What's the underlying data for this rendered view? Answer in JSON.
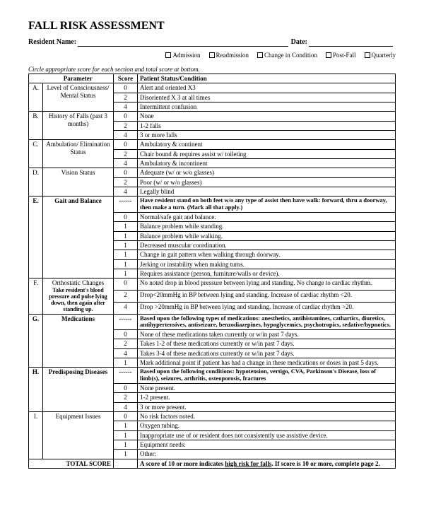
{
  "title": "FALL RISK ASSESSMENT",
  "header": {
    "resident_label": "Resident Name:",
    "date_label": "Date:"
  },
  "checkboxes": [
    "Admission",
    "Readmission",
    "Change in Condition",
    "Post-Fall",
    "Quarterly"
  ],
  "instruction": "Circle appropriate score for each section and total score at bottom.",
  "columns": [
    "Parameter",
    "Score",
    "Patient Status/Condition"
  ],
  "sections": [
    {
      "letter": "A.",
      "param": "Level of Consciousness/ Mental Status",
      "rows": [
        {
          "s": "0",
          "t": "Alert and oriented X3"
        },
        {
          "s": "2",
          "t": "Disoriented X 3 at all times"
        },
        {
          "s": "4",
          "t": "Intermittent confusion"
        }
      ]
    },
    {
      "letter": "B.",
      "param": "History of Falls (past 3 months)",
      "rows": [
        {
          "s": "0",
          "t": "None"
        },
        {
          "s": "2",
          "t": "1-2 falls"
        },
        {
          "s": "4",
          "t": "3 or more falls"
        }
      ]
    },
    {
      "letter": "C.",
      "param": "Ambulation/ Elimination Status",
      "rows": [
        {
          "s": "0",
          "t": "Ambulatory & continent"
        },
        {
          "s": "2",
          "t": "Chair bound & requires assist w/ toileting"
        },
        {
          "s": "4",
          "t": "Ambulatory & incontinent"
        }
      ]
    },
    {
      "letter": "D.",
      "param": "Vision Status",
      "rows": [
        {
          "s": "0",
          "t": "Adequate (w/ or w/o glasses)"
        },
        {
          "s": "2",
          "t": "Poor (w/ or w/o glasses)"
        },
        {
          "s": "4",
          "t": "Legally blind"
        }
      ]
    },
    {
      "letter": "E.",
      "param": "Gait and Balance",
      "note": "Have resident stand on both feet w/o any type of assist then have walk: forward, thru a doorway, then make a turn. (Mark all  that apply.)",
      "rows": [
        {
          "s": "0",
          "t": "Normal/safe gait and balance."
        },
        {
          "s": "1",
          "t": "Balance problem while standing."
        },
        {
          "s": "1",
          "t": "Balance problem while walking."
        },
        {
          "s": "1",
          "t": "Decreased muscular coordination."
        },
        {
          "s": "1",
          "t": "Change in gait pattern when walking through doorway."
        },
        {
          "s": "1",
          "t": "Jerking or instability when making turns."
        },
        {
          "s": "1",
          "t": "Requires assistance (person, furniture/walls or device)."
        }
      ]
    },
    {
      "letter": "F.",
      "param": "Orthostatic Changes",
      "sub": "Take resident's blood pressure and pulse lying down, then again after standing up.",
      "rows": [
        {
          "s": "0",
          "t": "No noted drop in blood pressure between lying and standing. No change to cardiac rhythm."
        },
        {
          "s": "2",
          "t": "Drop<20mmHg in BP between lying and standing. Increase of cardiac rhythm <20."
        },
        {
          "s": "4",
          "t": "Drop >20mmHg in BP between lying and standing. Increase of cardiac rhythm >20."
        }
      ]
    },
    {
      "letter": "G.",
      "param": "Medications",
      "note": "Based upon the following types of medications: anesthetics, antihistamines, cathartics, diuretics, antihypertensives, antiseizure, benzodiazepines, hypoglycemics, psychotropics, sedative/hypnotics.",
      "rows": [
        {
          "s": "0",
          "t": "None of these medications taken currently or w/in past 7 days."
        },
        {
          "s": "2",
          "t": "Takes 1-2 of these medications currently or w/in past 7 days."
        },
        {
          "s": "4",
          "t": "Takes 3-4 of these medications currently or w/in past 7 days."
        },
        {
          "s": "1",
          "t": "Mark additional point if patient has had a change in these medications or doses in past 5 days."
        }
      ]
    },
    {
      "letter": "H.",
      "param": "Predisposing Diseases",
      "note": "Based upon the following conditions: hypotension, vertigo, CVA, Parkinson's Disease, loss of limb(s), seizures, arthritis, osteoporosis, fractures",
      "rows": [
        {
          "s": "0",
          "t": "None present."
        },
        {
          "s": "2",
          "t": "1-2 present."
        },
        {
          "s": "4",
          "t": "3 or more present."
        }
      ]
    },
    {
      "letter": "I.",
      "param": "Equipment Issues",
      "rows": [
        {
          "s": "0",
          "t": "No risk factors noted."
        },
        {
          "s": "1",
          "t": "Oxygen tubing."
        },
        {
          "s": "1",
          "t": "Inappropriate use of or resident does not consistently use assistive device."
        },
        {
          "s": "1",
          "t": "Equipment needs:"
        },
        {
          "s": "1",
          "t": "Other:"
        }
      ]
    }
  ],
  "footer": {
    "label": "TOTAL SCORE",
    "text1": "A score of 10 or more indicates ",
    "text_u": "high risk for falls",
    "text2": ". If score is 10 or more, complete  page 2."
  }
}
